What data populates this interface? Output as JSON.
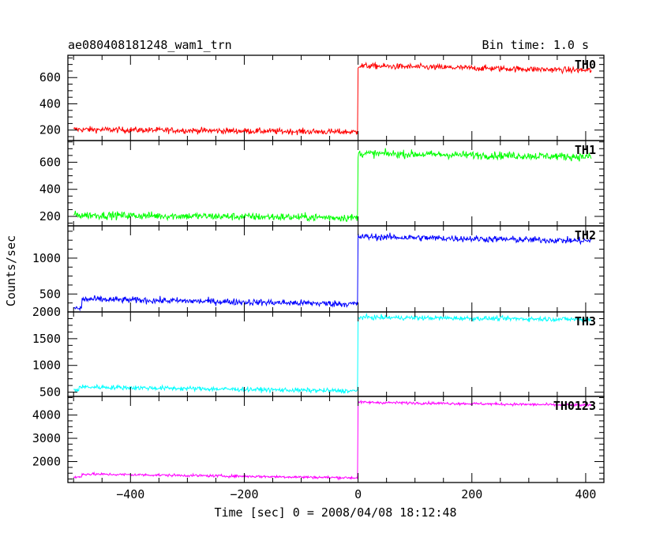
{
  "chart_data": {
    "type": "line",
    "title": "ae080408181248_wam1_trn",
    "bin_time_label": "Bin time: 1.0 s",
    "xlabel": "Time [sec] 0 = 2008/04/08 18:12:48",
    "ylabel": "Counts/sec",
    "xlim": [
      -510,
      432
    ],
    "x_ticks": [
      -400,
      -200,
      0,
      200,
      400
    ],
    "x_tick_labels": [
      "−400",
      "−200",
      "0",
      "200",
      "400"
    ],
    "grid": false,
    "trigger_time": 0,
    "data_start": -500,
    "data_end": 410,
    "panels": [
      {
        "name": "TH0",
        "color": "#ff0000",
        "ylim": [
          120,
          770
        ],
        "y_ticks": [
          200,
          400,
          600
        ],
        "y_tick_labels": [
          "200",
          "400",
          "600"
        ],
        "pre_trigger_level": [
          205,
          185
        ],
        "post_trigger_level": [
          690,
          655
        ],
        "noise": 16
      },
      {
        "name": "TH1",
        "color": "#00ff00",
        "ylim": [
          130,
          760
        ],
        "y_ticks": [
          200,
          400,
          600
        ],
        "y_tick_labels": [
          "200",
          "400",
          "600"
        ],
        "pre_trigger_level": [
          210,
          190
        ],
        "post_trigger_level": [
          665,
          640
        ],
        "noise": 20
      },
      {
        "name": "TH2",
        "color": "#0000ff",
        "ylim": [
          250,
          1450
        ],
        "y_ticks": [
          500,
          1000
        ],
        "y_tick_labels": [
          "500",
          "1000"
        ],
        "pre_trigger_level": [
          430,
          360
        ],
        "post_trigger_level": [
          1300,
          1240
        ],
        "noise": 32,
        "initial_level": 300,
        "step_time": -485
      },
      {
        "name": "TH3",
        "color": "#00ffff",
        "ylim": [
          420,
          2000
        ],
        "y_ticks": [
          500,
          1000,
          1500,
          2000
        ],
        "y_tick_labels": [
          "500",
          "1000",
          "1500",
          "2000"
        ],
        "pre_trigger_level": [
          600,
          520
        ],
        "post_trigger_level": [
          1900,
          1860
        ],
        "noise": 30,
        "initial_level": 540,
        "step_time": -490
      },
      {
        "name": "TH0123",
        "color": "#ff00ff",
        "ylim": [
          1100,
          4800
        ],
        "y_ticks": [
          2000,
          3000,
          4000
        ],
        "y_tick_labels": [
          "2000",
          "3000",
          "4000"
        ],
        "pre_trigger_level": [
          1470,
          1300
        ],
        "post_trigger_level": [
          4550,
          4420
        ],
        "noise": 40,
        "initial_level": 1330,
        "step_time": -485
      }
    ]
  }
}
